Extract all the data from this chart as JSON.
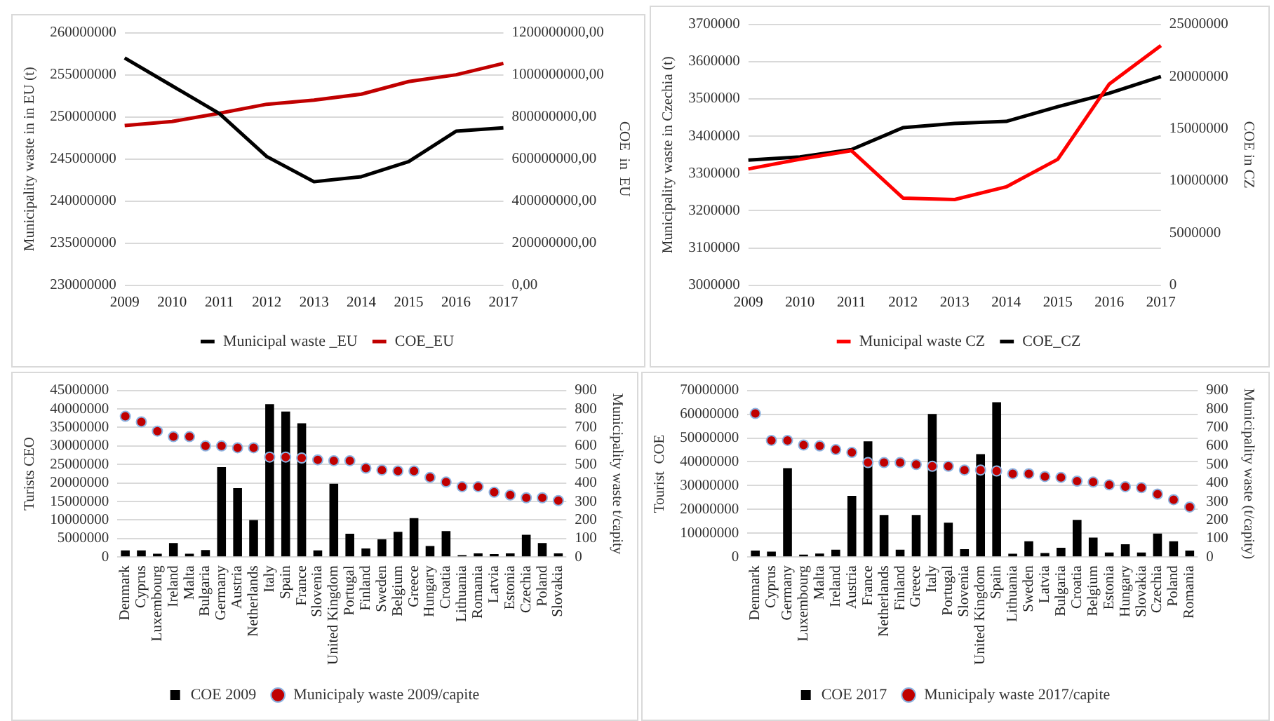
{
  "chart_data": [
    {
      "type": "line",
      "categories": [
        "2009",
        "2010",
        "2011",
        "2012",
        "2013",
        "2014",
        "2015",
        "2016",
        "2017"
      ],
      "ylabel": "Municipality waste in in EU (t)",
      "y2label": "COE  in  EU",
      "ylim": [
        230000000,
        260000000
      ],
      "yticks": [
        230000000,
        235000000,
        240000000,
        245000000,
        250000000,
        255000000,
        260000000
      ],
      "y2lim": [
        0,
        1200000000
      ],
      "y2ticks": [
        {
          "value": 0,
          "label": "0,00"
        },
        {
          "value": 200000000,
          "label": "200000000,00"
        },
        {
          "value": 400000000,
          "label": "400000000,00"
        },
        {
          "value": 600000000,
          "label": "600000000,00"
        },
        {
          "value": 800000000,
          "label": "800000000,00"
        },
        {
          "value": 1000000000,
          "label": "1000000000,00"
        },
        {
          "value": 1200000000,
          "label": "1200000000,00"
        }
      ],
      "grid": "y",
      "legend": "bottom",
      "marker": "none",
      "line_style": "solid",
      "series": [
        {
          "name": "Municipal waste _EU",
          "color": "#000000",
          "values": [
            257000000,
            253700000,
            250400000,
            245300000,
            242300000,
            242900000,
            244700000,
            248300000,
            248700000
          ]
        },
        {
          "name": "COE_EU",
          "color": "#c00000",
          "axis": "y2",
          "values": [
            759000000,
            778000000,
            817000000,
            860000000,
            880000000,
            908000000,
            968000000,
            1000000000,
            1054000000
          ]
        }
      ]
    },
    {
      "type": "line",
      "categories": [
        "2009",
        "2010",
        "2011",
        "2012",
        "2013",
        "2014",
        "2015",
        "2016",
        "2017"
      ],
      "ylabel": "Municipality waste in Czechia (t)",
      "y2label": "COE in CZ",
      "ylim": [
        3000000,
        3700000
      ],
      "yticks": [
        3000000,
        3100000,
        3200000,
        3300000,
        3400000,
        3500000,
        3600000,
        3700000
      ],
      "y2lim": [
        0,
        25000000
      ],
      "y2ticks": [
        0,
        5000000,
        10000000,
        15000000,
        20000000,
        25000000
      ],
      "grid": "y",
      "legend": "bottom",
      "marker": "none",
      "line_style": "solid",
      "series": [
        {
          "name": "Municipal waste CZ",
          "color": "#ff0000",
          "values": [
            3312000,
            3338000,
            3361000,
            3234000,
            3230000,
            3264000,
            3338000,
            3540000,
            3643000
          ]
        },
        {
          "name": "COE_CZ",
          "color": "#000000",
          "axis": "y2",
          "values": [
            12000000,
            12300000,
            13000000,
            15100000,
            15500000,
            15700000,
            17100000,
            18400000,
            20000000
          ]
        }
      ]
    },
    {
      "type": "bar",
      "categories": [
        "Denmark",
        "Cyprus",
        "Luxembourg",
        "Ireland",
        "Malta",
        "Bulgaria",
        "Germany",
        "Austria",
        "Netherlands",
        "Italy",
        "Spain",
        "France",
        "Slovenia",
        "United Kingdom",
        "Portugal",
        "Finland",
        "Sweden",
        "Belgium",
        "Greece",
        "Hungary",
        "Croatia",
        "Lithuania",
        "Romania",
        "Latvia",
        "Estonia",
        "Czechia",
        "Poland",
        "Slovakia"
      ],
      "ylabel": "Turists CEO",
      "y2label": "Municipality waste t/capity",
      "ylim": [
        0,
        45000000
      ],
      "yticks": [
        0,
        5000000,
        10000000,
        15000000,
        20000000,
        25000000,
        30000000,
        35000000,
        40000000,
        45000000
      ],
      "y2lim": [
        0,
        900
      ],
      "y2ticks": [
        0,
        100,
        200,
        300,
        400,
        500,
        600,
        700,
        800,
        900
      ],
      "grid": "y",
      "legend": "bottom",
      "series": [
        {
          "name": "COE 2009",
          "color": "#000000",
          "values": [
            1800000,
            1800000,
            900000,
            3800000,
            900000,
            1900000,
            24300000,
            18600000,
            10000000,
            41300000,
            39300000,
            36100000,
            1800000,
            19800000,
            6300000,
            2300000,
            4800000,
            6800000,
            10500000,
            3000000,
            7000000,
            500000,
            1000000,
            800000,
            1000000,
            6000000,
            3800000,
            1000000
          ]
        },
        {
          "name": "Municipaly waste 2009/capite",
          "type": "scatter",
          "marker": "circle",
          "color": "#c00000",
          "axis": "y2",
          "values": [
            760,
            730,
            680,
            650,
            650,
            600,
            600,
            590,
            590,
            540,
            540,
            535,
            525,
            520,
            520,
            480,
            470,
            465,
            465,
            430,
            405,
            380,
            380,
            350,
            335,
            320,
            320,
            305
          ]
        }
      ]
    },
    {
      "type": "bar",
      "categories": [
        "Denmark",
        "Cyprus",
        "Germany",
        "Luxembourg",
        "Malta",
        "Ireland",
        "Austria",
        "France",
        "Netherlands",
        "Finland",
        "Greece",
        "Italy",
        "Portugal",
        "Slovenia",
        "United Kingdom",
        "Spain",
        "Lithuania",
        "Sweden",
        "Latvia",
        "Bulgaria",
        "Croatia",
        "Belgium",
        "Estonia",
        "Hungary",
        "Slovakia",
        "Czechia",
        "Poland",
        "Romania"
      ],
      "ylabel": "Tourist  COE",
      "y2label": "Municipality waste (t/capity)",
      "ylim": [
        0,
        70000000
      ],
      "yticks": [
        0,
        10000000,
        20000000,
        30000000,
        40000000,
        50000000,
        60000000,
        70000000
      ],
      "y2lim": [
        0,
        900
      ],
      "y2ticks": [
        0,
        100,
        200,
        300,
        400,
        500,
        600,
        700,
        800,
        900
      ],
      "grid": "y",
      "legend": "bottom",
      "series": [
        {
          "name": "COE 2017",
          "color": "#000000",
          "values": [
            2700000,
            2300000,
            37300000,
            1000000,
            1500000,
            3100000,
            25700000,
            48600000,
            17700000,
            3100000,
            17700000,
            60100000,
            14400000,
            3300000,
            43200000,
            65000000,
            1400000,
            6600000,
            1700000,
            3900000,
            15600000,
            8200000,
            1900000,
            5400000,
            1900000,
            9900000,
            6600000,
            2700000
          ]
        },
        {
          "name": "Municipaly waste 2017/capite",
          "type": "scatter",
          "marker": "circle",
          "color": "#c00000",
          "axis": "y2",
          "values": [
            775,
            630,
            630,
            605,
            600,
            580,
            565,
            510,
            510,
            510,
            500,
            490,
            490,
            470,
            470,
            465,
            450,
            450,
            435,
            430,
            410,
            405,
            390,
            380,
            375,
            340,
            310,
            270
          ]
        }
      ]
    }
  ]
}
